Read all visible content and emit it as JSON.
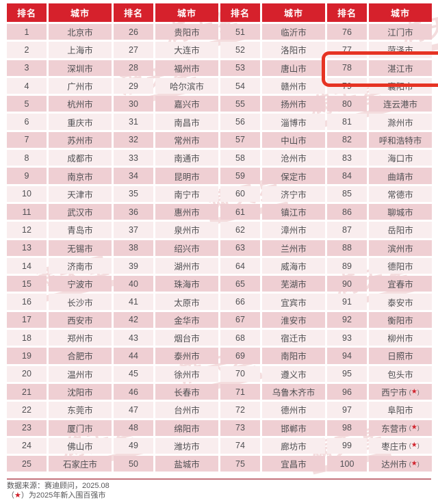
{
  "chart_data": {
    "type": "table",
    "rank_header": "排名",
    "city_header": "城市",
    "pairs": 4,
    "rows_per_column": 25,
    "star_prefix": "(",
    "star_char": "★",
    "star_suffix": ")",
    "entries": [
      {
        "rank": "1",
        "city": "北京市"
      },
      {
        "rank": "2",
        "city": "上海市"
      },
      {
        "rank": "3",
        "city": "深圳市"
      },
      {
        "rank": "4",
        "city": "广州市"
      },
      {
        "rank": "5",
        "city": "杭州市"
      },
      {
        "rank": "6",
        "city": "重庆市"
      },
      {
        "rank": "7",
        "city": "苏州市"
      },
      {
        "rank": "8",
        "city": "成都市"
      },
      {
        "rank": "9",
        "city": "南京市"
      },
      {
        "rank": "10",
        "city": "天津市"
      },
      {
        "rank": "11",
        "city": "武汉市"
      },
      {
        "rank": "12",
        "city": "青岛市"
      },
      {
        "rank": "13",
        "city": "无锡市"
      },
      {
        "rank": "14",
        "city": "济南市"
      },
      {
        "rank": "15",
        "city": "宁波市"
      },
      {
        "rank": "16",
        "city": "长沙市"
      },
      {
        "rank": "17",
        "city": "西安市"
      },
      {
        "rank": "18",
        "city": "郑州市"
      },
      {
        "rank": "19",
        "city": "合肥市"
      },
      {
        "rank": "20",
        "city": "温州市"
      },
      {
        "rank": "21",
        "city": "沈阳市"
      },
      {
        "rank": "22",
        "city": "东莞市"
      },
      {
        "rank": "23",
        "city": "厦门市"
      },
      {
        "rank": "24",
        "city": "佛山市"
      },
      {
        "rank": "25",
        "city": "石家庄市"
      },
      {
        "rank": "26",
        "city": "贵阳市"
      },
      {
        "rank": "27",
        "city": "大连市"
      },
      {
        "rank": "28",
        "city": "福州市"
      },
      {
        "rank": "29",
        "city": "哈尔滨市"
      },
      {
        "rank": "30",
        "city": "嘉兴市"
      },
      {
        "rank": "31",
        "city": "南昌市"
      },
      {
        "rank": "32",
        "city": "常州市"
      },
      {
        "rank": "33",
        "city": "南通市"
      },
      {
        "rank": "34",
        "city": "昆明市"
      },
      {
        "rank": "35",
        "city": "南宁市"
      },
      {
        "rank": "36",
        "city": "惠州市"
      },
      {
        "rank": "37",
        "city": "泉州市"
      },
      {
        "rank": "38",
        "city": "绍兴市"
      },
      {
        "rank": "39",
        "city": "湖州市"
      },
      {
        "rank": "40",
        "city": "珠海市"
      },
      {
        "rank": "41",
        "city": "太原市"
      },
      {
        "rank": "42",
        "city": "金华市"
      },
      {
        "rank": "43",
        "city": "烟台市"
      },
      {
        "rank": "44",
        "city": "泰州市"
      },
      {
        "rank": "45",
        "city": "徐州市"
      },
      {
        "rank": "46",
        "city": "长春市"
      },
      {
        "rank": "47",
        "city": "台州市"
      },
      {
        "rank": "48",
        "city": "绵阳市"
      },
      {
        "rank": "49",
        "city": "潍坊市"
      },
      {
        "rank": "50",
        "city": "盐城市"
      },
      {
        "rank": "51",
        "city": "临沂市"
      },
      {
        "rank": "52",
        "city": "洛阳市"
      },
      {
        "rank": "53",
        "city": "唐山市"
      },
      {
        "rank": "54",
        "city": "赣州市"
      },
      {
        "rank": "55",
        "city": "扬州市"
      },
      {
        "rank": "56",
        "city": "淄博市"
      },
      {
        "rank": "57",
        "city": "中山市"
      },
      {
        "rank": "58",
        "city": "沧州市"
      },
      {
        "rank": "59",
        "city": "保定市"
      },
      {
        "rank": "60",
        "city": "济宁市"
      },
      {
        "rank": "61",
        "city": "镇江市"
      },
      {
        "rank": "62",
        "city": "漳州市"
      },
      {
        "rank": "63",
        "city": "兰州市"
      },
      {
        "rank": "64",
        "city": "威海市"
      },
      {
        "rank": "65",
        "city": "芜湖市"
      },
      {
        "rank": "66",
        "city": "宜宾市"
      },
      {
        "rank": "67",
        "city": "淮安市"
      },
      {
        "rank": "68",
        "city": "宿迁市"
      },
      {
        "rank": "69",
        "city": "南阳市"
      },
      {
        "rank": "70",
        "city": "遵义市"
      },
      {
        "rank": "71",
        "city": "乌鲁木齐市"
      },
      {
        "rank": "72",
        "city": "德州市"
      },
      {
        "rank": "73",
        "city": "邯郸市"
      },
      {
        "rank": "74",
        "city": "廊坊市"
      },
      {
        "rank": "75",
        "city": "宜昌市"
      },
      {
        "rank": "76",
        "city": "江门市"
      },
      {
        "rank": "77",
        "city": "菏泽市"
      },
      {
        "rank": "78",
        "city": "湛江市",
        "highlighted": true
      },
      {
        "rank": "79",
        "city": "襄阳市"
      },
      {
        "rank": "80",
        "city": "连云港市"
      },
      {
        "rank": "81",
        "city": "滁州市"
      },
      {
        "rank": "82",
        "city": "呼和浩特市"
      },
      {
        "rank": "83",
        "city": "海口市"
      },
      {
        "rank": "84",
        "city": "曲靖市"
      },
      {
        "rank": "85",
        "city": "常德市"
      },
      {
        "rank": "86",
        "city": "聊城市"
      },
      {
        "rank": "87",
        "city": "岳阳市"
      },
      {
        "rank": "88",
        "city": "滨州市"
      },
      {
        "rank": "89",
        "city": "德阳市"
      },
      {
        "rank": "90",
        "city": "宜春市"
      },
      {
        "rank": "91",
        "city": "泰安市"
      },
      {
        "rank": "92",
        "city": "衡阳市"
      },
      {
        "rank": "93",
        "city": "柳州市"
      },
      {
        "rank": "94",
        "city": "日照市"
      },
      {
        "rank": "95",
        "city": "包头市"
      },
      {
        "rank": "96",
        "city": "西宁市",
        "new_entry": true
      },
      {
        "rank": "97",
        "city": "阜阳市"
      },
      {
        "rank": "98",
        "city": "东营市",
        "new_entry": true
      },
      {
        "rank": "99",
        "city": "枣庄市",
        "new_entry": true
      },
      {
        "rank": "100",
        "city": "达州市",
        "new_entry": true
      }
    ]
  },
  "watermark": {
    "text": "满天星"
  },
  "footer": {
    "line1": "数据来源：赛迪顾问，2025.08",
    "legend_open": "（",
    "legend_star": "★",
    "legend_rest": "）为2025年新入围百强市"
  },
  "colors": {
    "header_red": "#d6212c",
    "row_dark": "#efcfd3",
    "row_light": "#f9edee",
    "highlight_border": "#e63323",
    "star_red": "#d0212b",
    "text_gray": "#4f4f52"
  }
}
